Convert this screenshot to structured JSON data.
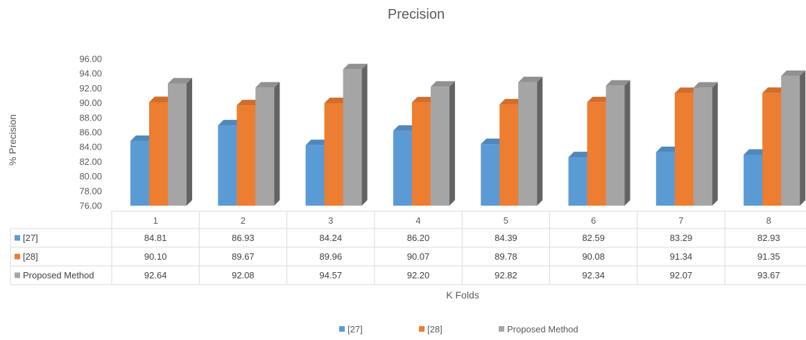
{
  "chart_data": {
    "type": "bar",
    "title": "Precision",
    "xlabel": "K Folds",
    "ylabel": "% Precision",
    "ylim": [
      76,
      96
    ],
    "ytick_step": 2,
    "ytick_labels": [
      "76.00",
      "78.00",
      "80.00",
      "82.00",
      "84.00",
      "86.00",
      "88.00",
      "90.00",
      "92.00",
      "94.00",
      "96.00"
    ],
    "categories": [
      "1",
      "2",
      "3",
      "4",
      "5",
      "6",
      "7",
      "8"
    ],
    "series": [
      {
        "name": "[27]",
        "color": "#5B9BD5",
        "values": [
          84.81,
          86.93,
          84.24,
          86.2,
          84.39,
          82.59,
          83.29,
          82.93
        ],
        "labels": [
          "84.81",
          "86.93",
          "84.24",
          "86.20",
          "84.39",
          "82.59",
          "83.29",
          "82.93"
        ]
      },
      {
        "name": "[28]",
        "color": "#ED7D31",
        "values": [
          90.1,
          89.67,
          89.96,
          90.07,
          89.78,
          90.08,
          91.34,
          91.35
        ],
        "labels": [
          "90.10",
          "89.67",
          "89.96",
          "90.07",
          "89.78",
          "90.08",
          "91.34",
          "91.35"
        ]
      },
      {
        "name": "Proposed Method",
        "color": "#A5A5A5",
        "values": [
          92.64,
          92.08,
          94.57,
          92.2,
          92.82,
          92.34,
          92.07,
          93.67
        ],
        "labels": [
          "92.64",
          "92.08",
          "94.57",
          "92.20",
          "92.82",
          "92.34",
          "92.07",
          "93.67"
        ]
      }
    ],
    "legend_position": "bottom",
    "grid": false,
    "data_table": true
  }
}
